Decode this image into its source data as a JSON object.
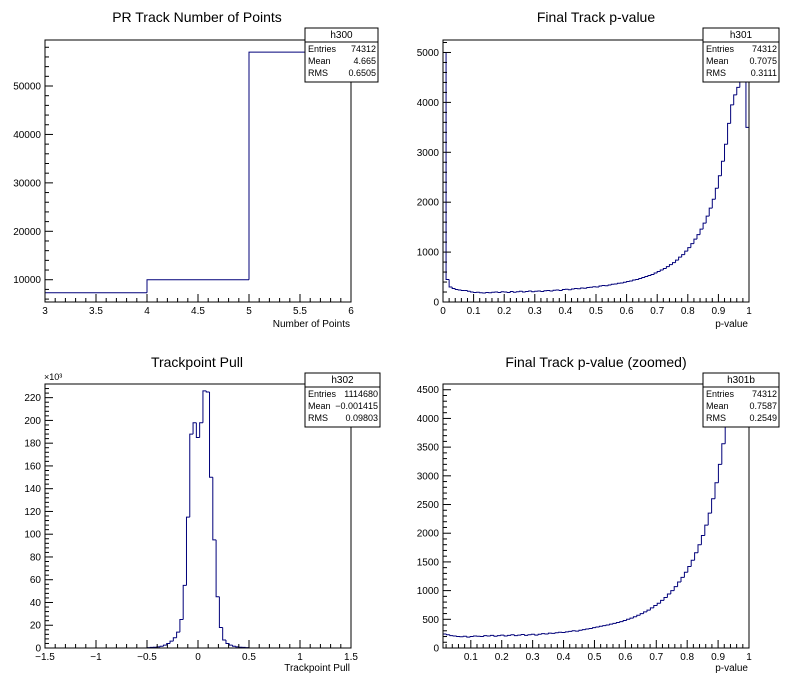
{
  "chart_data": [
    {
      "type": "histogram",
      "title": "PR Track Number of Points",
      "xlabel": "Number of Points",
      "ylabel": "",
      "xlim": [
        3,
        6
      ],
      "ylim": [
        5400,
        59500
      ],
      "x_ticks": [
        "3",
        "3.5",
        "4",
        "4.5",
        "5",
        "5.5",
        "6"
      ],
      "y_ticks": [
        "10000",
        "20000",
        "30000",
        "40000",
        "50000"
      ],
      "y_exponent": "",
      "bins": [
        {
          "x0": 3,
          "x1": 4,
          "value": 7300
        },
        {
          "x0": 4,
          "x1": 5,
          "value": 10000
        },
        {
          "x0": 5,
          "x1": 6,
          "value": 57000
        }
      ],
      "stats": {
        "name": "h300",
        "rows": [
          [
            "Entries",
            "74312"
          ],
          [
            "Mean",
            "4.665"
          ],
          [
            "RMS",
            "0.6505"
          ]
        ]
      }
    },
    {
      "type": "histogram",
      "title": "Final Track p-value",
      "xlabel": "p-value",
      "ylabel": "",
      "xlim": [
        0,
        1
      ],
      "ylim": [
        0,
        5250
      ],
      "x_ticks": [
        "0",
        "0.1",
        "0.2",
        "0.3",
        "0.4",
        "0.5",
        "0.6",
        "0.7",
        "0.8",
        "0.9",
        "1"
      ],
      "y_ticks": [
        "0",
        "1000",
        "2000",
        "3000",
        "4000",
        "5000"
      ],
      "y_exponent": "",
      "bin_range": [
        0,
        1
      ],
      "values": [
        5000,
        450,
        300,
        270,
        250,
        240,
        230,
        230,
        215,
        200,
        190,
        195,
        185,
        180,
        190,
        185,
        195,
        200,
        190,
        205,
        200,
        190,
        210,
        195,
        205,
        215,
        200,
        210,
        220,
        205,
        215,
        220,
        210,
        225,
        230,
        220,
        235,
        240,
        230,
        250,
        255,
        245,
        260,
        270,
        265,
        280,
        275,
        290,
        295,
        305,
        300,
        320,
        330,
        325,
        340,
        355,
        360,
        375,
        380,
        395,
        410,
        420,
        440,
        450,
        470,
        490,
        510,
        530,
        550,
        580,
        610,
        640,
        670,
        710,
        750,
        790,
        840,
        900,
        950,
        1020,
        1090,
        1170,
        1260,
        1350,
        1460,
        1580,
        1720,
        1880,
        2060,
        2280,
        2530,
        2820,
        3160,
        3580,
        3950,
        4150,
        4300,
        4500,
        4850,
        3500
      ]
    },
    {
      "type": "histogram",
      "title": "Trackpoint Pull",
      "xlabel": "Trackpoint Pull",
      "ylabel": "",
      "xlim": [
        -1.5,
        1.5
      ],
      "ylim": [
        0,
        232
      ],
      "x_ticks": [
        "−1.5",
        "−1",
        "−0.5",
        "0",
        "0.5",
        "1",
        "1.5"
      ],
      "y_ticks": [
        "0",
        "20",
        "40",
        "60",
        "80",
        "100",
        "120",
        "140",
        "160",
        "180",
        "200",
        "220"
      ],
      "y_exponent": "×10³",
      "y_units": "thousands",
      "bin_range": [
        -0.5,
        0.5
      ],
      "values": [
        0.3,
        0.5,
        0.7,
        1.0,
        1.5,
        2.5,
        4,
        6,
        9,
        14,
        25,
        55,
        115,
        188,
        198,
        185,
        198,
        226,
        225,
        150,
        95,
        45,
        18,
        7,
        4,
        2.5,
        1.5,
        1.0,
        0.7,
        0.5,
        0.3
      ]
    },
    {
      "type": "histogram",
      "title": "Final Track p-value (zoomed)",
      "xlabel": "p-value",
      "ylabel": "",
      "xlim": [
        0.01,
        1
      ],
      "ylim": [
        0,
        4600
      ],
      "x_ticks": [
        "0.1",
        "0.2",
        "0.3",
        "0.4",
        "0.5",
        "0.6",
        "0.7",
        "0.8",
        "0.9",
        "1"
      ],
      "y_ticks": [
        "0",
        "500",
        "1000",
        "1500",
        "2000",
        "2500",
        "3000",
        "3500",
        "4000",
        "4500"
      ],
      "y_exponent": "",
      "bin_range": [
        0.01,
        1
      ],
      "values": [
        245,
        230,
        215,
        210,
        200,
        195,
        205,
        190,
        200,
        210,
        205,
        200,
        215,
        210,
        220,
        205,
        215,
        225,
        210,
        220,
        230,
        215,
        225,
        235,
        220,
        230,
        240,
        225,
        240,
        250,
        245,
        260,
        255,
        265,
        275,
        270,
        280,
        290,
        300,
        295,
        310,
        320,
        330,
        340,
        355,
        365,
        380,
        390,
        400,
        415,
        430,
        445,
        460,
        480,
        500,
        520,
        545,
        570,
        600,
        630,
        660,
        700,
        740,
        780,
        830,
        880,
        940,
        1000,
        1070,
        1150,
        1230,
        1320,
        1420,
        1530,
        1660,
        1800,
        1960,
        2140,
        2350,
        2600,
        2880,
        3200,
        3560,
        3950,
        4050,
        4150,
        4250,
        4350,
        4500,
        3900
      ]
    }
  ],
  "stats_boxes": {
    "h301": {
      "name": "h301",
      "rows": [
        [
          "Entries",
          "74312"
        ],
        [
          "Mean",
          "0.7075"
        ],
        [
          "RMS",
          "0.3111"
        ]
      ]
    },
    "h302": {
      "name": "h302",
      "rows": [
        [
          "Entries",
          "1114680"
        ],
        [
          "Mean",
          "−0.001415"
        ],
        [
          "RMS",
          "0.09803"
        ]
      ]
    },
    "h301b": {
      "name": "h301b",
      "rows": [
        [
          "Entries",
          "74312"
        ],
        [
          "Mean",
          "0.7587"
        ],
        [
          "RMS",
          "0.2549"
        ]
      ]
    }
  },
  "colors": {
    "line": "#00007a",
    "frame": "#000000"
  }
}
